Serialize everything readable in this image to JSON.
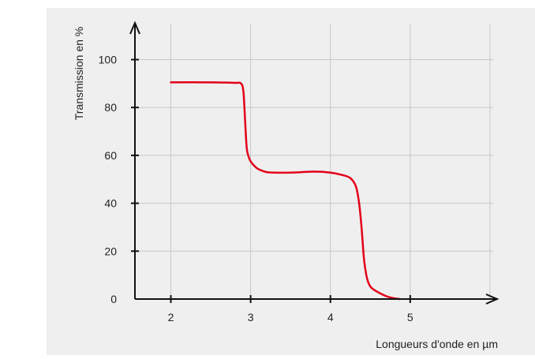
{
  "colors": {
    "panel_background": "#efefef",
    "grid": "#c8c8c8",
    "axis": "#111111",
    "curve": "#e3001b"
  },
  "chart_data": {
    "type": "line",
    "title": "",
    "xlabel": "Longueurs d'onde en µm",
    "ylabel": "Transmission en %",
    "xlim": [
      1.55,
      6.05
    ],
    "ylim": [
      0,
      115
    ],
    "x_ticks": [
      2,
      3,
      4,
      5
    ],
    "y_ticks": [
      0,
      20,
      40,
      60,
      80,
      100
    ],
    "x_grid": [
      2,
      3,
      4,
      5,
      6
    ],
    "y_grid": [
      20,
      40,
      60,
      80,
      100
    ],
    "grid": true,
    "legend": "none",
    "series": [
      {
        "name": "",
        "color": "#e3001b",
        "x": [
          2.0,
          2.5,
          2.8,
          2.88,
          2.91,
          2.93,
          2.95,
          2.97,
          3.0,
          3.05,
          3.1,
          3.2,
          3.3,
          3.5,
          3.8,
          4.0,
          4.15,
          4.25,
          4.32,
          4.36,
          4.39,
          4.42,
          4.45,
          4.48,
          4.52,
          4.6,
          4.7,
          4.8,
          4.87
        ],
        "y": [
          90.5,
          90.5,
          90.3,
          90.0,
          86.5,
          75.0,
          63.5,
          60.0,
          57.5,
          55.5,
          54.2,
          53.0,
          52.8,
          52.8,
          53.2,
          52.8,
          51.8,
          50.5,
          47.0,
          40.0,
          30.0,
          17.0,
          10.0,
          6.5,
          4.5,
          2.8,
          1.2,
          0.3,
          0.0
        ]
      }
    ]
  }
}
